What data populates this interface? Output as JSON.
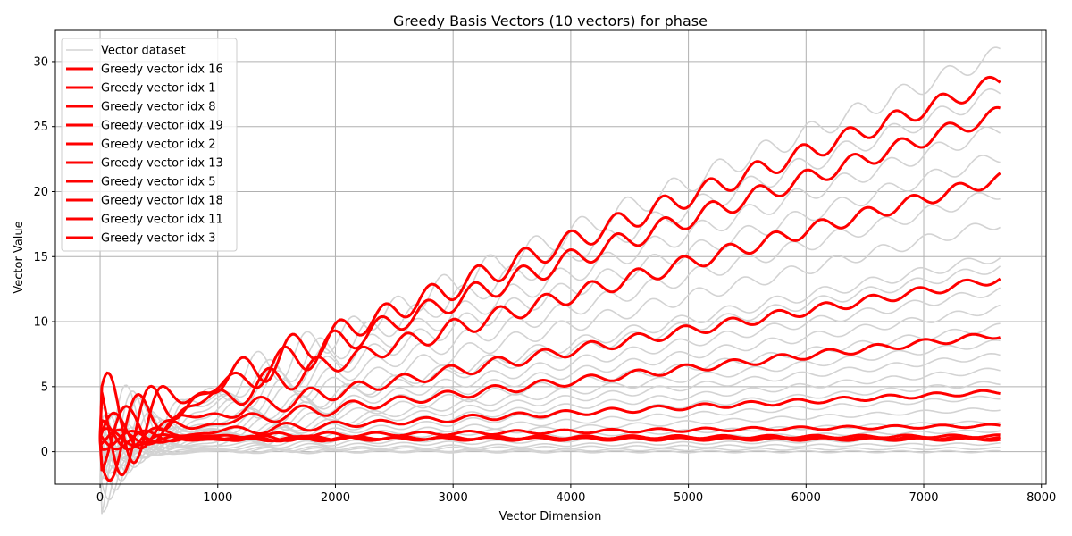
{
  "chart_data": {
    "type": "line",
    "title": "Greedy Basis Vectors (10 vectors) for phase",
    "xlabel": "Vector Dimension",
    "ylabel": "Vector Value",
    "xlim": [
      -380,
      8040
    ],
    "ylim": [
      -2.5,
      32.4
    ],
    "xticks": [
      0,
      1000,
      2000,
      3000,
      4000,
      5000,
      6000,
      7000,
      8000
    ],
    "yticks": [
      0,
      5,
      10,
      15,
      20,
      25,
      30
    ],
    "grid": true,
    "legend_position": "top-left",
    "x_max": 7650,
    "dataset_color": "#d3d3d3",
    "greedy_color": "#ff0000",
    "dataset_series": {
      "name": "Vector dataset",
      "final_values": [
        0.0,
        0.25,
        0.6,
        1.0,
        1.6,
        2.3,
        3.3,
        4.2,
        5.3,
        6.3,
        7.4,
        8.4,
        9.6,
        11.0,
        12.4,
        14.2,
        15.0,
        17.6,
        19.9,
        22.7,
        24.8,
        27.6,
        30.6
      ]
    },
    "series": [
      {
        "name": "Greedy vector idx 16",
        "final_value": 28.5
      },
      {
        "name": "Greedy vector idx 1",
        "final_value": 26.0
      },
      {
        "name": "Greedy vector idx 8",
        "final_value": 21.0
      },
      {
        "name": "Greedy vector idx 19",
        "final_value": 13.3
      },
      {
        "name": "Greedy vector idx 2",
        "final_value": 9.0
      },
      {
        "name": "Greedy vector idx 13",
        "final_value": 4.6
      },
      {
        "name": "Greedy vector idx 5",
        "final_value": 2.0
      },
      {
        "name": "Greedy vector idx 18",
        "final_value": 1.2
      },
      {
        "name": "Greedy vector idx 11",
        "final_value": 1.05
      },
      {
        "name": "Greedy vector idx 3",
        "final_value": 0.95
      }
    ]
  }
}
